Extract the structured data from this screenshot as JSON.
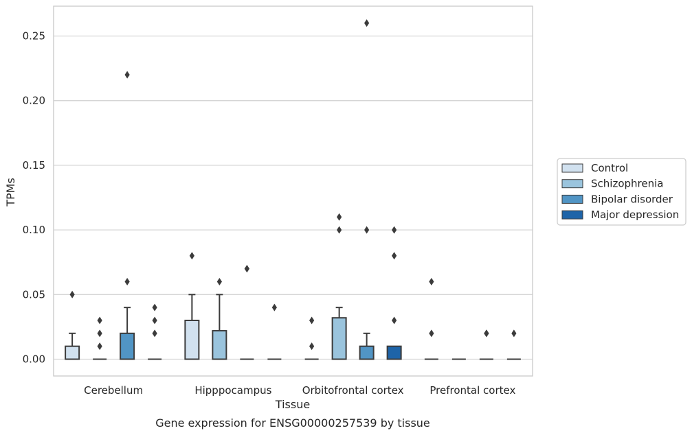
{
  "caption": "Gene expression for ENSG00000257539 by tissue",
  "chart_data": {
    "type": "box",
    "xlabel": "Tissue",
    "ylabel": "TPMs",
    "ylim": [
      -0.0125,
      0.2735
    ],
    "yticks": [
      0.0,
      0.05,
      0.1,
      0.15,
      0.2,
      0.25
    ],
    "ytick_labels": [
      "0.00",
      "0.05",
      "0.10",
      "0.15",
      "0.20",
      "0.25"
    ],
    "grid": "horizontal",
    "legend_position": "right",
    "categories": [
      "Cerebellum",
      "Hipppocampus",
      "Orbitofrontal cortex",
      "Prefrontal cortex"
    ],
    "series": [
      {
        "name": "Control",
        "color": "#d1e1ef",
        "boxes": [
          {
            "q1": 0.0,
            "median": 0.0,
            "q3": 0.01,
            "whisker_low": 0.0,
            "whisker_high": 0.02,
            "outliers": [
              0.05
            ]
          },
          {
            "q1": 0.0,
            "median": 0.0,
            "q3": 0.03,
            "whisker_low": 0.0,
            "whisker_high": 0.05,
            "outliers": [
              0.08
            ]
          },
          {
            "q1": 0.0,
            "median": 0.0,
            "q3": 0.0,
            "whisker_low": 0.0,
            "whisker_high": 0.0,
            "outliers": [
              0.03,
              0.01
            ]
          },
          {
            "q1": 0.0,
            "median": 0.0,
            "q3": 0.0,
            "whisker_low": 0.0,
            "whisker_high": 0.0,
            "outliers": [
              0.06,
              0.02
            ]
          }
        ]
      },
      {
        "name": "Schizophrenia",
        "color": "#9ac4dd",
        "boxes": [
          {
            "q1": 0.0,
            "median": 0.0,
            "q3": 0.0,
            "whisker_low": 0.0,
            "whisker_high": 0.0,
            "outliers": [
              0.03,
              0.02,
              0.01
            ]
          },
          {
            "q1": 0.0,
            "median": 0.0,
            "q3": 0.022,
            "whisker_low": 0.0,
            "whisker_high": 0.05,
            "outliers": [
              0.06
            ]
          },
          {
            "q1": 0.0,
            "median": 0.0,
            "q3": 0.032,
            "whisker_low": 0.0,
            "whisker_high": 0.04,
            "outliers": [
              0.11,
              0.1
            ]
          },
          {
            "q1": 0.0,
            "median": 0.0,
            "q3": 0.0,
            "whisker_low": 0.0,
            "whisker_high": 0.0,
            "outliers": []
          }
        ]
      },
      {
        "name": "Bipolar disorder",
        "color": "#5195c5",
        "boxes": [
          {
            "q1": 0.0,
            "median": 0.0,
            "q3": 0.02,
            "whisker_low": 0.0,
            "whisker_high": 0.04,
            "outliers": [
              0.06,
              0.22
            ]
          },
          {
            "q1": 0.0,
            "median": 0.0,
            "q3": 0.0,
            "whisker_low": 0.0,
            "whisker_high": 0.0,
            "outliers": [
              0.07,
              0.07
            ]
          },
          {
            "q1": 0.0,
            "median": 0.0,
            "q3": 0.01,
            "whisker_low": 0.0,
            "whisker_high": 0.02,
            "outliers": [
              0.1,
              0.26
            ]
          },
          {
            "q1": 0.0,
            "median": 0.0,
            "q3": 0.0,
            "whisker_low": 0.0,
            "whisker_high": 0.0,
            "outliers": [
              0.02,
              0.02
            ]
          }
        ]
      },
      {
        "name": "Major depression",
        "color": "#1e64a8",
        "boxes": [
          {
            "q1": 0.0,
            "median": 0.0,
            "q3": 0.0,
            "whisker_low": 0.0,
            "whisker_high": 0.0,
            "outliers": [
              0.04,
              0.03,
              0.02
            ]
          },
          {
            "q1": 0.0,
            "median": 0.0,
            "q3": 0.0,
            "whisker_low": 0.0,
            "whisker_high": 0.0,
            "outliers": [
              0.04
            ]
          },
          {
            "q1": 0.0,
            "median": 0.0,
            "q3": 0.01,
            "whisker_low": 0.0,
            "whisker_high": 0.01,
            "outliers": [
              0.1,
              0.08,
              0.03
            ]
          },
          {
            "q1": 0.0,
            "median": 0.0,
            "q3": 0.0,
            "whisker_low": 0.0,
            "whisker_high": 0.0,
            "outliers": [
              0.02
            ]
          }
        ]
      }
    ]
  }
}
